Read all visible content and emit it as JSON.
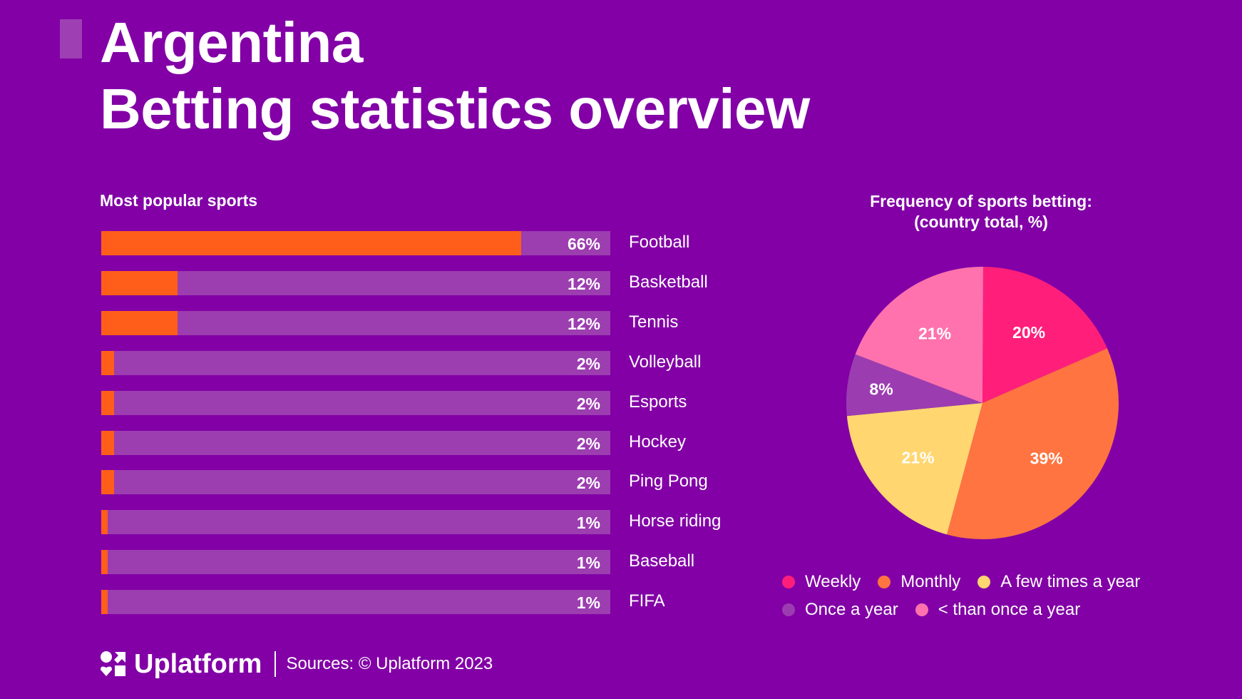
{
  "header": {
    "title_line1": "Argentina",
    "title_line2": "Betting statistics overview"
  },
  "colors": {
    "background": "#8200a6",
    "bar_track": "#9c3db0",
    "bar_fill": "#ff5e1a",
    "accent_block": "#9e40b3"
  },
  "chart_data": [
    {
      "type": "bar",
      "orientation": "horizontal",
      "title": "Most popular sports",
      "categories": [
        "Football",
        "Basketball",
        "Tennis",
        "Volleyball",
        "Esports",
        "Hockey",
        "Ping Pong",
        "Horse riding",
        "Baseball",
        "FIFA"
      ],
      "values": [
        66,
        12,
        12,
        2,
        2,
        2,
        2,
        1,
        1,
        1
      ],
      "value_labels": [
        "66%",
        "12%",
        "12%",
        "2%",
        "2%",
        "2%",
        "2%",
        "1%",
        "1%",
        "1%"
      ],
      "xlim": [
        0,
        80
      ],
      "unit": "%",
      "grid": false,
      "legend": "none"
    },
    {
      "type": "pie",
      "title": "Frequency of sports betting:",
      "subtitle": "(country total, %)",
      "categories": [
        "Weekly",
        "Monthly",
        "A few times a year",
        "Once a year",
        "< than once a year"
      ],
      "values": [
        20,
        39,
        21,
        8,
        21
      ],
      "value_labels": [
        "20%",
        "39%",
        "21%",
        "8%",
        "21%"
      ],
      "colors": [
        "#ff1f7a",
        "#ff7440",
        "#ffd670",
        "#9b3db0",
        "#ff72ae"
      ],
      "start": "top",
      "direction": "clockwise",
      "legend": "bottom"
    }
  ],
  "footer": {
    "brand": "Uplatform",
    "logo_icon": "uplatform-logo-icon",
    "sources": "Sources: © Uplatform 2023"
  }
}
